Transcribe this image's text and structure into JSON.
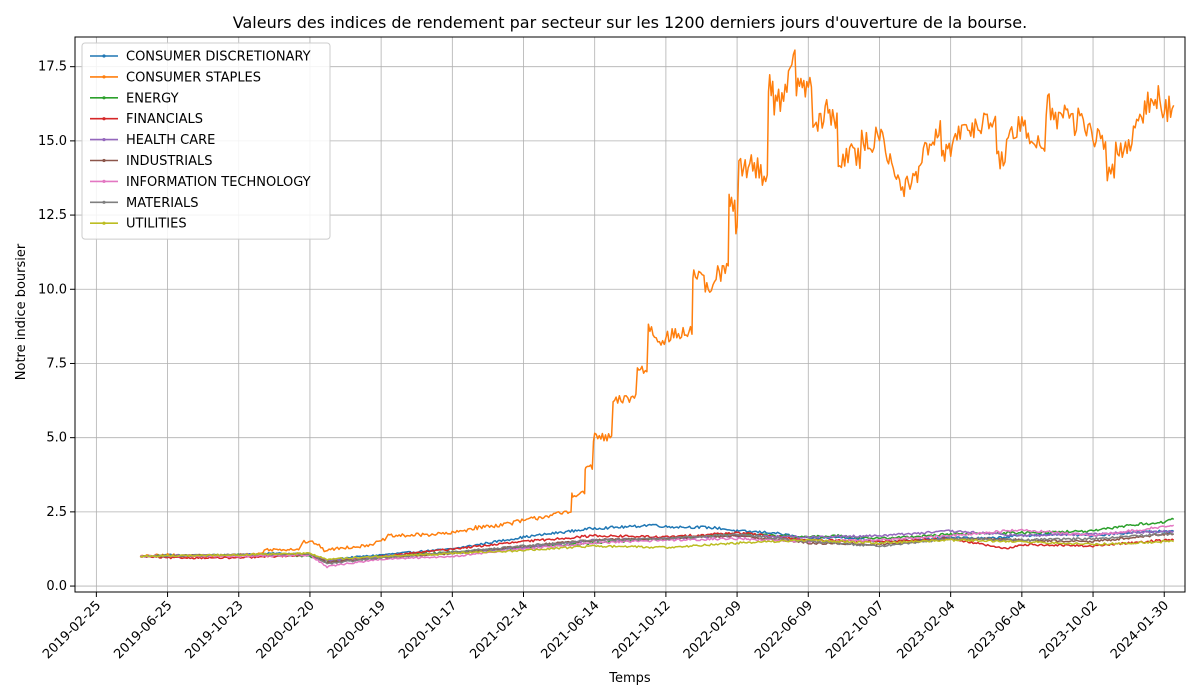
{
  "chart_data": {
    "type": "line",
    "title": "Valeurs des indices de rendement par secteur sur les 1200 derniers jours d'ouverture de la bourse.",
    "xlabel": "Temps",
    "ylabel": "Notre indice boursier",
    "x_ticks": [
      "2019-02-25",
      "2019-06-25",
      "2019-10-23",
      "2020-02-20",
      "2020-06-19",
      "2020-10-17",
      "2021-02-14",
      "2021-06-14",
      "2021-10-12",
      "2022-02-09",
      "2022-06-09",
      "2022-10-07",
      "2023-02-04",
      "2023-06-04",
      "2023-10-02",
      "2024-01-30"
    ],
    "y_ticks": [
      "0.0",
      "2.5",
      "5.0",
      "7.5",
      "10.0",
      "12.5",
      "15.0",
      "17.5"
    ],
    "xlim": [
      "2019-01-20",
      "2024-03-05"
    ],
    "ylim": [
      -0.2,
      18.5
    ],
    "grid": true,
    "legend_position": "top-left",
    "series": [
      {
        "name": "CONSUMER DISCRETIONARY",
        "color": "#1f77b4",
        "points": [
          [
            "2019-05-10",
            1.0
          ],
          [
            "2019-06-25",
            1.05
          ],
          [
            "2019-08-15",
            1.02
          ],
          [
            "2019-10-23",
            1.05
          ],
          [
            "2019-12-20",
            1.1
          ],
          [
            "2020-02-20",
            1.08
          ],
          [
            "2020-03-20",
            0.85
          ],
          [
            "2020-04-20",
            0.95
          ],
          [
            "2020-06-19",
            1.05
          ],
          [
            "2020-08-15",
            1.15
          ],
          [
            "2020-10-17",
            1.25
          ],
          [
            "2020-12-15",
            1.45
          ],
          [
            "2021-02-14",
            1.65
          ],
          [
            "2021-04-15",
            1.8
          ],
          [
            "2021-06-14",
            1.95
          ],
          [
            "2021-08-15",
            2.0
          ],
          [
            "2021-09-20",
            2.07
          ],
          [
            "2021-10-12",
            2.0
          ],
          [
            "2021-12-15",
            1.98
          ],
          [
            "2022-01-10",
            1.95
          ],
          [
            "2022-02-09",
            1.85
          ],
          [
            "2022-04-10",
            1.8
          ],
          [
            "2022-06-09",
            1.6
          ],
          [
            "2022-08-10",
            1.65
          ],
          [
            "2022-10-07",
            1.5
          ],
          [
            "2022-12-10",
            1.55
          ],
          [
            "2023-02-04",
            1.65
          ],
          [
            "2023-04-05",
            1.6
          ],
          [
            "2023-06-04",
            1.7
          ],
          [
            "2023-08-05",
            1.75
          ],
          [
            "2023-10-02",
            1.7
          ],
          [
            "2023-12-01",
            1.8
          ],
          [
            "2024-01-30",
            1.85
          ],
          [
            "2024-02-15",
            1.85
          ]
        ]
      },
      {
        "name": "CONSUMER STAPLES",
        "color": "#ff7f0e",
        "points": [
          [
            "2019-05-10",
            1.0
          ],
          [
            "2019-06-25",
            1.05
          ],
          [
            "2019-08-15",
            1.0
          ],
          [
            "2019-10-23",
            1.05
          ],
          [
            "2019-12-01",
            1.1
          ],
          [
            "2019-12-05",
            1.22
          ],
          [
            "2020-02-01",
            1.25
          ],
          [
            "2020-02-10",
            1.5
          ],
          [
            "2020-03-01",
            1.45
          ],
          [
            "2020-03-15",
            1.2
          ],
          [
            "2020-04-20",
            1.3
          ],
          [
            "2020-05-20",
            1.35
          ],
          [
            "2020-06-19",
            1.5
          ],
          [
            "2020-07-01",
            1.68
          ],
          [
            "2020-08-20",
            1.72
          ],
          [
            "2020-10-17",
            1.78
          ],
          [
            "2020-11-20",
            1.95
          ],
          [
            "2021-01-01",
            2.05
          ],
          [
            "2021-02-14",
            2.2
          ],
          [
            "2021-03-20",
            2.35
          ],
          [
            "2021-04-20",
            2.45
          ],
          [
            "2021-05-05",
            2.5
          ],
          [
            "2021-05-08",
            3.1
          ],
          [
            "2021-05-28",
            3.1
          ],
          [
            "2021-05-30",
            4.0
          ],
          [
            "2021-06-10",
            4.0
          ],
          [
            "2021-06-14",
            5.0
          ],
          [
            "2021-07-10",
            5.0
          ],
          [
            "2021-07-20",
            6.2
          ],
          [
            "2021-08-20",
            6.4
          ],
          [
            "2021-08-30",
            7.3
          ],
          [
            "2021-09-10",
            7.3
          ],
          [
            "2021-09-15",
            8.7
          ],
          [
            "2021-10-01",
            8.3
          ],
          [
            "2021-10-12",
            8.4
          ],
          [
            "2021-11-10",
            8.5
          ],
          [
            "2021-11-25",
            8.6
          ],
          [
            "2021-11-28",
            10.5
          ],
          [
            "2021-12-15",
            10.2
          ],
          [
            "2021-12-25",
            9.9
          ],
          [
            "2022-01-10",
            10.5
          ],
          [
            "2022-01-25",
            10.7
          ],
          [
            "2022-01-28",
            12.9
          ],
          [
            "2022-02-05",
            12.7
          ],
          [
            "2022-02-09",
            12.1
          ],
          [
            "2022-02-15",
            14.1
          ],
          [
            "2022-03-10",
            14.2
          ],
          [
            "2022-04-01",
            13.7
          ],
          [
            "2022-04-05",
            16.9
          ],
          [
            "2022-04-20",
            16.3
          ],
          [
            "2022-05-15",
            17.6
          ],
          [
            "2022-05-25",
            16.9
          ],
          [
            "2022-06-09",
            16.8
          ],
          [
            "2022-06-25",
            15.5
          ],
          [
            "2022-07-10",
            16.0
          ],
          [
            "2022-07-25",
            15.7
          ],
          [
            "2022-08-01",
            14.3
          ],
          [
            "2022-08-15",
            14.6
          ],
          [
            "2022-09-01",
            14.4
          ],
          [
            "2022-09-10",
            15.0
          ],
          [
            "2022-09-25",
            14.9
          ],
          [
            "2022-10-07",
            15.4
          ],
          [
            "2022-10-25",
            14.5
          ],
          [
            "2022-11-15",
            13.3
          ],
          [
            "2022-11-25",
            13.5
          ],
          [
            "2022-12-10",
            13.8
          ],
          [
            "2022-12-20",
            14.5
          ],
          [
            "2023-01-05",
            14.8
          ],
          [
            "2023-01-15",
            15.3
          ],
          [
            "2023-01-25",
            14.6
          ],
          [
            "2023-02-04",
            14.8
          ],
          [
            "2023-02-20",
            15.2
          ],
          [
            "2023-03-10",
            15.5
          ],
          [
            "2023-03-25",
            15.4
          ],
          [
            "2023-04-01",
            16.0
          ],
          [
            "2023-04-15",
            15.5
          ],
          [
            "2023-05-01",
            14.3
          ],
          [
            "2023-05-15",
            15.2
          ],
          [
            "2023-06-04",
            15.5
          ],
          [
            "2023-06-20",
            15.0
          ],
          [
            "2023-07-10",
            15.0
          ],
          [
            "2023-07-20",
            16.2
          ],
          [
            "2023-08-05",
            15.7
          ],
          [
            "2023-08-20",
            16.0
          ],
          [
            "2023-09-01",
            15.5
          ],
          [
            "2023-09-10",
            15.8
          ],
          [
            "2023-10-02",
            15.2
          ],
          [
            "2023-10-20",
            14.8
          ],
          [
            "2023-11-01",
            14.0
          ],
          [
            "2023-11-15",
            14.6
          ],
          [
            "2023-12-01",
            15.0
          ],
          [
            "2023-12-20",
            15.5
          ],
          [
            "2024-01-05",
            16.3
          ],
          [
            "2024-01-20",
            16.5
          ],
          [
            "2024-01-30",
            16.0
          ],
          [
            "2024-02-15",
            16.2
          ]
        ]
      },
      {
        "name": "ENERGY",
        "color": "#2ca02c",
        "points": [
          [
            "2019-05-10",
            1.0
          ],
          [
            "2019-06-25",
            1.02
          ],
          [
            "2019-10-23",
            1.05
          ],
          [
            "2020-02-20",
            1.0
          ],
          [
            "2020-03-20",
            0.85
          ],
          [
            "2020-06-19",
            1.0
          ],
          [
            "2020-10-17",
            1.15
          ],
          [
            "2021-02-14",
            1.3
          ],
          [
            "2021-06-14",
            1.45
          ],
          [
            "2021-10-12",
            1.6
          ],
          [
            "2022-02-09",
            1.75
          ],
          [
            "2022-06-09",
            1.65
          ],
          [
            "2022-08-01",
            1.7
          ],
          [
            "2022-10-07",
            1.6
          ],
          [
            "2023-02-04",
            1.75
          ],
          [
            "2023-06-04",
            1.8
          ],
          [
            "2023-10-02",
            1.85
          ],
          [
            "2023-12-01",
            2.05
          ],
          [
            "2024-01-30",
            2.15
          ],
          [
            "2024-02-15",
            2.25
          ]
        ]
      },
      {
        "name": "FINANCIALS",
        "color": "#d62728",
        "points": [
          [
            "2019-05-10",
            1.0
          ],
          [
            "2019-06-25",
            0.95
          ],
          [
            "2019-10-23",
            0.95
          ],
          [
            "2020-02-20",
            1.05
          ],
          [
            "2020-03-20",
            0.8
          ],
          [
            "2020-06-19",
            1.0
          ],
          [
            "2020-10-17",
            1.25
          ],
          [
            "2021-02-14",
            1.5
          ],
          [
            "2021-06-14",
            1.7
          ],
          [
            "2021-10-12",
            1.65
          ],
          [
            "2022-02-09",
            1.8
          ],
          [
            "2022-06-09",
            1.55
          ],
          [
            "2022-10-07",
            1.5
          ],
          [
            "2023-02-04",
            1.6
          ],
          [
            "2023-05-10",
            1.25
          ],
          [
            "2023-06-04",
            1.4
          ],
          [
            "2023-10-02",
            1.35
          ],
          [
            "2024-01-30",
            1.55
          ],
          [
            "2024-02-15",
            1.55
          ]
        ]
      },
      {
        "name": "HEALTH CARE",
        "color": "#9467bd",
        "points": [
          [
            "2019-05-10",
            1.0
          ],
          [
            "2019-06-25",
            1.02
          ],
          [
            "2019-10-23",
            1.05
          ],
          [
            "2020-02-20",
            1.08
          ],
          [
            "2020-03-20",
            0.85
          ],
          [
            "2020-06-19",
            1.0
          ],
          [
            "2020-10-17",
            1.1
          ],
          [
            "2021-02-14",
            1.3
          ],
          [
            "2021-06-14",
            1.55
          ],
          [
            "2021-10-12",
            1.6
          ],
          [
            "2022-02-09",
            1.7
          ],
          [
            "2022-06-09",
            1.65
          ],
          [
            "2022-10-07",
            1.7
          ],
          [
            "2023-02-04",
            1.85
          ],
          [
            "2023-06-04",
            1.7
          ],
          [
            "2023-10-02",
            1.75
          ],
          [
            "2024-01-30",
            1.85
          ],
          [
            "2024-02-15",
            1.85
          ]
        ]
      },
      {
        "name": "INDUSTRIALS",
        "color": "#8c564b",
        "points": [
          [
            "2019-05-10",
            1.0
          ],
          [
            "2019-06-25",
            1.02
          ],
          [
            "2019-10-23",
            1.05
          ],
          [
            "2020-02-20",
            1.05
          ],
          [
            "2020-03-20",
            0.8
          ],
          [
            "2020-06-19",
            0.95
          ],
          [
            "2020-10-17",
            1.1
          ],
          [
            "2021-02-14",
            1.35
          ],
          [
            "2021-06-14",
            1.55
          ],
          [
            "2021-10-12",
            1.6
          ],
          [
            "2022-02-09",
            1.7
          ],
          [
            "2022-06-09",
            1.45
          ],
          [
            "2022-10-07",
            1.4
          ],
          [
            "2023-02-04",
            1.6
          ],
          [
            "2023-06-04",
            1.55
          ],
          [
            "2023-10-02",
            1.5
          ],
          [
            "2024-01-30",
            1.75
          ],
          [
            "2024-02-15",
            1.75
          ]
        ]
      },
      {
        "name": "INFORMATION TECHNOLOGY",
        "color": "#e377c2",
        "points": [
          [
            "2019-05-10",
            1.0
          ],
          [
            "2019-06-25",
            1.02
          ],
          [
            "2019-10-23",
            1.0
          ],
          [
            "2020-02-20",
            1.05
          ],
          [
            "2020-03-20",
            0.65
          ],
          [
            "2020-04-20",
            0.75
          ],
          [
            "2020-06-19",
            0.9
          ],
          [
            "2020-10-17",
            1.0
          ],
          [
            "2021-02-14",
            1.25
          ],
          [
            "2021-06-14",
            1.45
          ],
          [
            "2021-10-12",
            1.55
          ],
          [
            "2022-02-09",
            1.6
          ],
          [
            "2022-06-09",
            1.5
          ],
          [
            "2022-10-07",
            1.55
          ],
          [
            "2023-02-04",
            1.7
          ],
          [
            "2023-06-04",
            1.9
          ],
          [
            "2023-10-02",
            1.7
          ],
          [
            "2024-01-30",
            2.0
          ],
          [
            "2024-02-15",
            2.05
          ]
        ]
      },
      {
        "name": "MATERIALS",
        "color": "#7f7f7f",
        "points": [
          [
            "2019-05-10",
            1.0
          ],
          [
            "2019-06-25",
            1.02
          ],
          [
            "2019-10-23",
            1.05
          ],
          [
            "2020-02-20",
            1.1
          ],
          [
            "2020-03-20",
            0.75
          ],
          [
            "2020-06-19",
            0.95
          ],
          [
            "2020-10-17",
            1.15
          ],
          [
            "2021-02-14",
            1.35
          ],
          [
            "2021-06-14",
            1.55
          ],
          [
            "2021-10-12",
            1.6
          ],
          [
            "2022-02-09",
            1.75
          ],
          [
            "2022-06-09",
            1.5
          ],
          [
            "2022-10-07",
            1.35
          ],
          [
            "2023-02-04",
            1.6
          ],
          [
            "2023-06-04",
            1.55
          ],
          [
            "2023-10-02",
            1.6
          ],
          [
            "2024-01-30",
            1.75
          ],
          [
            "2024-02-15",
            1.75
          ]
        ]
      },
      {
        "name": "UTILITIES",
        "color": "#bcbd22",
        "points": [
          [
            "2019-05-10",
            1.0
          ],
          [
            "2019-06-25",
            1.02
          ],
          [
            "2019-10-23",
            1.05
          ],
          [
            "2020-02-20",
            1.1
          ],
          [
            "2020-03-20",
            0.9
          ],
          [
            "2020-06-19",
            1.0
          ],
          [
            "2020-10-17",
            1.1
          ],
          [
            "2021-02-14",
            1.2
          ],
          [
            "2021-06-14",
            1.35
          ],
          [
            "2021-10-12",
            1.3
          ],
          [
            "2022-02-09",
            1.45
          ],
          [
            "2022-06-09",
            1.55
          ],
          [
            "2022-10-07",
            1.45
          ],
          [
            "2023-02-04",
            1.55
          ],
          [
            "2023-06-04",
            1.5
          ],
          [
            "2023-10-02",
            1.4
          ],
          [
            "2024-01-30",
            1.5
          ],
          [
            "2024-02-15",
            1.5
          ]
        ]
      }
    ]
  }
}
